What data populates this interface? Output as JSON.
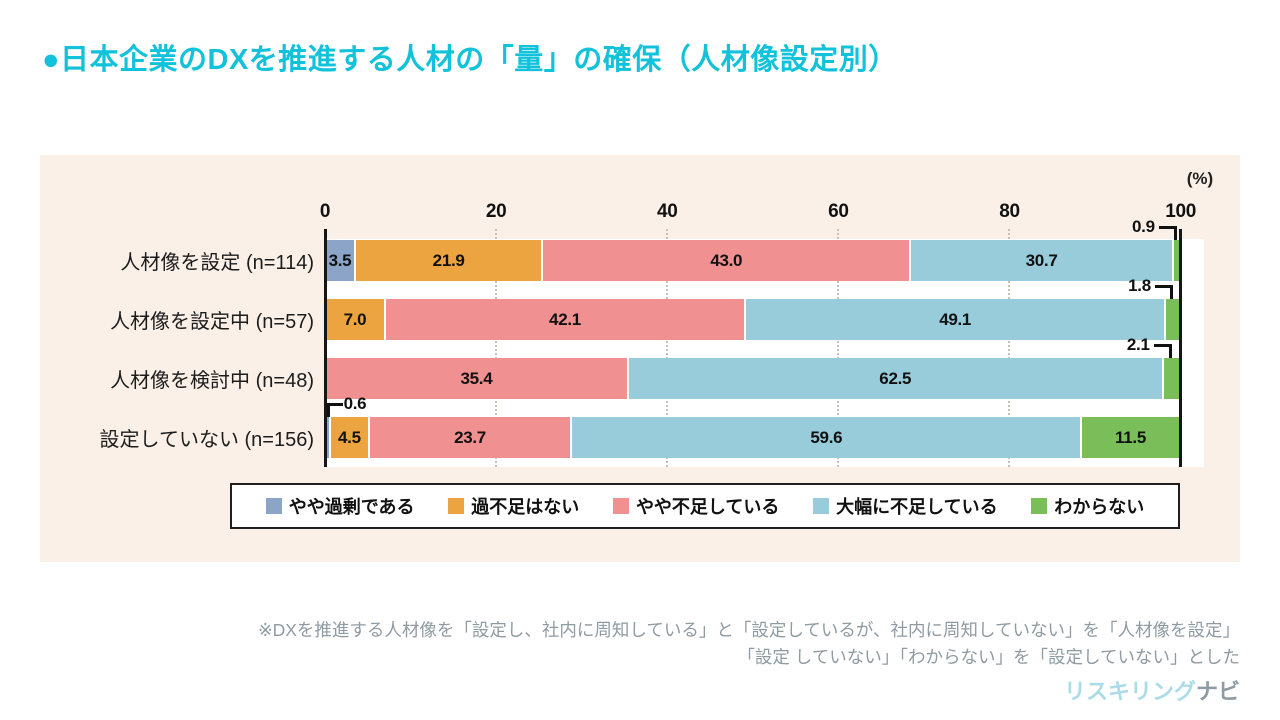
{
  "title": "●日本企業のDXを推進する人材の「量」の確保（人材像設定別）",
  "panel_background": "#faf0e7",
  "chart_data": {
    "type": "bar",
    "variant": "horizontal-stacked",
    "unit_label": "(%)",
    "xlim": [
      0,
      100
    ],
    "x_ticks": [
      0,
      20,
      40,
      60,
      80,
      100
    ],
    "grid": "dotted-vertical",
    "legend_position": "bottom",
    "categories": [
      "人材像を設定 (n=114)",
      "人材像を設定中 (n=57)",
      "人材像を検討中 (n=48)",
      "設定していない (n=156)"
    ],
    "series": [
      {
        "name": "やや過剰である",
        "color": "#8ba4c7",
        "values": [
          3.5,
          null,
          null,
          0.6
        ]
      },
      {
        "name": "過不足はない",
        "color": "#eba43f",
        "values": [
          21.9,
          7.0,
          null,
          4.5
        ]
      },
      {
        "name": "やや不足している",
        "color": "#f09090",
        "values": [
          43.0,
          42.1,
          35.4,
          23.7
        ]
      },
      {
        "name": "大幅に不足している",
        "color": "#98ccda",
        "values": [
          30.7,
          49.1,
          62.5,
          59.6
        ]
      },
      {
        "name": "わからない",
        "color": "#79be58",
        "values": [
          0.9,
          1.8,
          2.1,
          11.5
        ]
      }
    ],
    "callouts": [
      {
        "row": 0,
        "series": 4,
        "value": 0.9,
        "pct": 99.55,
        "side": "right"
      },
      {
        "row": 1,
        "series": 4,
        "value": 1.8,
        "pct": 99.1,
        "side": "right"
      },
      {
        "row": 2,
        "series": 4,
        "value": 2.1,
        "pct": 98.95,
        "side": "right"
      },
      {
        "row": 3,
        "series": 0,
        "value": 0.6,
        "pct": 0.3,
        "side": "left"
      }
    ]
  },
  "footnote": {
    "line1": "※DXを推進する人材像を「設定し、社内に周知している」と「設定しているが、社内に周知していない」を「人材像を設定」",
    "line2": "「設定 していない」「わからない」を「設定していない」とした"
  },
  "logo": {
    "part1": "リスキリング",
    "part2": "ナビ",
    "part1_color": "#a9dce8",
    "part2_color": "#8f9ba3"
  }
}
